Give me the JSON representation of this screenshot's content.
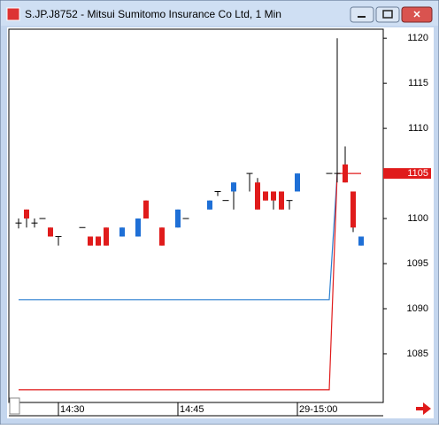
{
  "chart_data": {
    "type": "candlestick",
    "title": "S.JP.J8752 - Mitsui Sumitomo Insurance Co Ltd, 1 Min",
    "categories": [
      null,
      null,
      null,
      null,
      null,
      "14:30",
      null,
      null,
      null,
      null,
      null,
      null,
      null,
      null,
      null,
      null,
      null,
      null,
      null,
      null,
      "14:45",
      null,
      null,
      null,
      null,
      null,
      null,
      null,
      null,
      null,
      null,
      null,
      null,
      null,
      null,
      "29-15:00",
      null,
      null,
      null,
      null,
      null,
      null,
      null,
      null
    ],
    "open": [
      1099.5,
      1101,
      1099.5,
      1100,
      1099,
      1098,
      null,
      null,
      1099,
      1098,
      1098,
      1099,
      null,
      1098,
      null,
      1098,
      1102,
      null,
      1099,
      null,
      1099,
      1100,
      null,
      null,
      1101,
      1103,
      1102,
      1103,
      null,
      1105,
      1104,
      1103,
      1103,
      1103,
      1102,
      1103,
      null,
      null,
      null,
      1105,
      1105,
      1106,
      1103,
      1097
    ],
    "high": [
      1100,
      1101,
      1100,
      1100,
      1099,
      1098,
      null,
      null,
      1099,
      1098,
      1098,
      1099,
      null,
      1099,
      null,
      1100,
      1102,
      null,
      1099,
      null,
      1101,
      1100,
      null,
      null,
      1102,
      1103,
      1102,
      1104,
      null,
      1105,
      1104.5,
      1103,
      1103,
      1103,
      1102,
      1105,
      null,
      null,
      null,
      1105,
      1120,
      1108,
      1103,
      1098
    ],
    "low": [
      1098.9,
      1099,
      1099,
      1100,
      1098,
      1097,
      null,
      null,
      1099,
      1097,
      1097,
      1097,
      null,
      1098,
      null,
      1098,
      1100,
      null,
      1097,
      null,
      1099,
      1100,
      null,
      null,
      1101,
      1102.5,
      1102,
      1101,
      null,
      1103,
      1101,
      1102,
      1101,
      1101,
      1101,
      1103,
      null,
      null,
      null,
      1105,
      1104,
      1104,
      1098.5,
      1097
    ],
    "close": [
      1099.5,
      1100,
      1099.5,
      1100,
      1098,
      1098,
      null,
      null,
      1099,
      1097,
      1097,
      1097,
      null,
      1099,
      null,
      1100,
      1100,
      null,
      1097,
      null,
      1101,
      1100,
      null,
      null,
      1102,
      1103,
      1102,
      1104,
      null,
      1105,
      1101,
      1102,
      1102,
      1101,
      1102,
      1105,
      null,
      null,
      null,
      1105,
      1105,
      1104,
      1099,
      1098
    ],
    "up_color": "#1e6fd6",
    "down_color": "#e01b1b",
    "lines": [
      {
        "color": "#2a7fd0",
        "values": [
          1091,
          1091,
          1091,
          1091,
          1091,
          1091,
          1091,
          1091,
          1091,
          1091,
          1091,
          1091,
          1091,
          1091,
          1091,
          1091,
          1091,
          1091,
          1091,
          1091,
          1091,
          1091,
          1091,
          1091,
          1091,
          1091,
          1091,
          1091,
          1091,
          1091,
          1091,
          1091,
          1091,
          1091,
          1091,
          1091,
          1091,
          1091,
          1091,
          1091,
          1105,
          null,
          null,
          null
        ]
      },
      {
        "color": "#e01b1b",
        "values": [
          1081,
          1081,
          1081,
          1081,
          1081,
          1081,
          1081,
          1081,
          1081,
          1081,
          1081,
          1081,
          1081,
          1081,
          1081,
          1081,
          1081,
          1081,
          1081,
          1081,
          1081,
          1081,
          1081,
          1081,
          1081,
          1081,
          1081,
          1081,
          1081,
          1081,
          1081,
          1081,
          1081,
          1081,
          1081,
          1081,
          1081,
          1081,
          1081,
          1081,
          1105,
          1105,
          1105,
          1105
        ]
      }
    ],
    "last_price": 1105,
    "ylim": [
      1079.6,
      1121
    ],
    "yticks": [
      1085,
      1090,
      1095,
      1100,
      1105,
      1110,
      1115,
      1120
    ]
  }
}
